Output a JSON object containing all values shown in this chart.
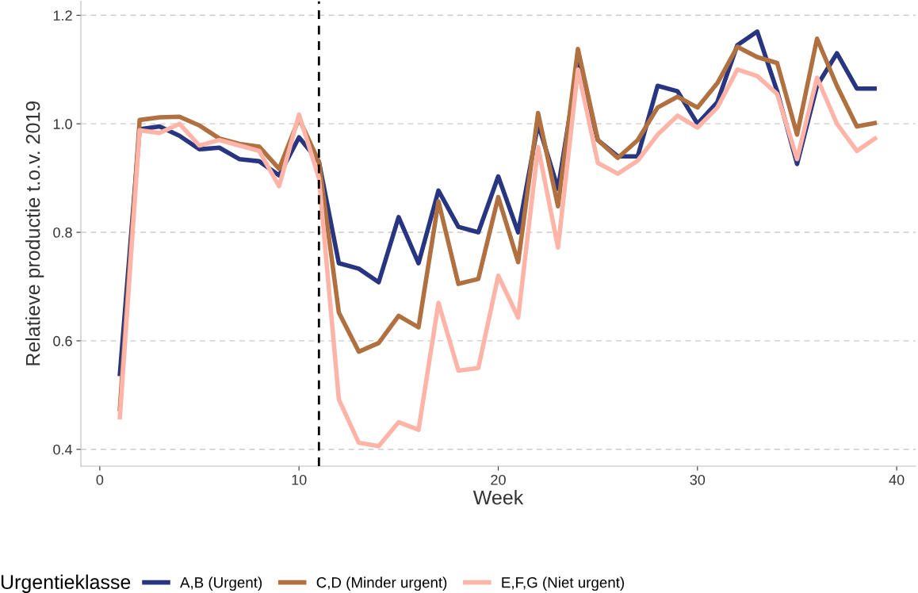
{
  "chart_data": {
    "type": "line",
    "xlabel": "Week",
    "ylabel": "Relatieve productie t.o.v. 2019",
    "legend_title": "Urgentieklasse",
    "legend": "bottom",
    "grid": "y",
    "line_style": "solid",
    "x": [
      1,
      2,
      3,
      4,
      5,
      6,
      7,
      8,
      9,
      10,
      11,
      12,
      13,
      14,
      15,
      16,
      17,
      18,
      19,
      20,
      21,
      22,
      23,
      24,
      25,
      26,
      27,
      28,
      29,
      30,
      31,
      32,
      33,
      34,
      35,
      36,
      37,
      38,
      39
    ],
    "xlim": [
      -0.95,
      40.95
    ],
    "xticks": [
      0,
      10,
      20,
      30,
      40
    ],
    "ylim": [
      0.369,
      1.226
    ],
    "yticks": [
      0.4,
      0.6,
      0.8,
      {
        "value": 1,
        "label": "1.0"
      },
      1.2
    ],
    "ref_lines": [
      {
        "axis": "x",
        "value": 11,
        "color": "#000000",
        "line_style": "dashed"
      }
    ],
    "series": [
      {
        "name": "A,B (Urgent)",
        "color": "#283580",
        "values": [
          0.535,
          0.99,
          0.995,
          0.978,
          0.953,
          0.956,
          0.935,
          0.931,
          0.905,
          0.975,
          0.93,
          0.743,
          0.733,
          0.708,
          0.828,
          0.743,
          0.877,
          0.81,
          0.8,
          0.903,
          0.8,
          1.0,
          0.88,
          1.11,
          0.97,
          0.94,
          0.94,
          1.07,
          1.06,
          1.0,
          1.04,
          1.145,
          1.17,
          1.06,
          0.926,
          1.07,
          1.13,
          1.065,
          1.065
        ]
      },
      {
        "name": "C,D (Minder urgent)",
        "color": "#b07040",
        "values": [
          0.47,
          1.007,
          1.012,
          1.013,
          0.997,
          0.973,
          0.963,
          0.958,
          0.917,
          1.01,
          0.93,
          0.652,
          0.58,
          0.596,
          0.646,
          0.625,
          0.857,
          0.705,
          0.714,
          0.865,
          0.745,
          1.02,
          0.848,
          1.138,
          0.97,
          0.937,
          0.97,
          1.03,
          1.05,
          1.03,
          1.075,
          1.142,
          1.123,
          1.112,
          0.98,
          1.157,
          1.07,
          0.995,
          1.002
        ]
      },
      {
        "name": "E,F,G (Niet urgent)",
        "color": "#ffb4a8",
        "values": [
          0.455,
          0.988,
          0.983,
          1.0,
          0.96,
          0.97,
          0.96,
          0.95,
          0.885,
          1.017,
          0.9,
          0.492,
          0.412,
          0.406,
          0.45,
          0.436,
          0.67,
          0.545,
          0.55,
          0.72,
          0.643,
          0.957,
          0.772,
          1.1,
          0.928,
          0.908,
          0.932,
          0.98,
          1.015,
          0.993,
          1.03,
          1.1,
          1.088,
          1.055,
          0.935,
          1.085,
          1.0,
          0.95,
          0.975
        ]
      }
    ]
  }
}
